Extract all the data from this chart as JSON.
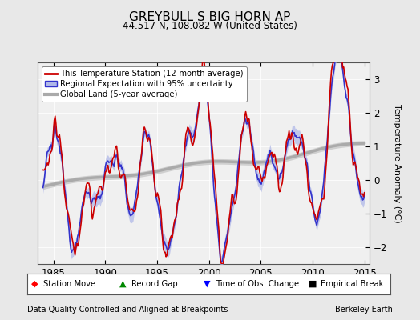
{
  "title": "GREYBULL S BIG HORN AP",
  "subtitle": "44.517 N, 108.082 W (United States)",
  "xlabel_left": "Data Quality Controlled and Aligned at Breakpoints",
  "xlabel_right": "Berkeley Earth",
  "ylabel": "Temperature Anomaly (°C)",
  "xlim": [
    1983.5,
    2015.5
  ],
  "ylim": [
    -2.5,
    3.5
  ],
  "yticks": [
    -2,
    -1,
    0,
    1,
    2,
    3
  ],
  "xticks": [
    1985,
    1990,
    1995,
    2000,
    2005,
    2010,
    2015
  ],
  "bg_color": "#e8e8e8",
  "plot_bg_color": "#f0f0f0",
  "legend_station": "This Temperature Station (12-month average)",
  "legend_regional": "Regional Expectation with 95% uncertainty",
  "legend_global": "Global Land (5-year average)",
  "station_color": "#cc0000",
  "regional_color": "#3333cc",
  "regional_fill_color": "#b0b8e8",
  "global_color": "#aaaaaa",
  "global_fill_color": "#cccccc",
  "grid_color": "#dddddd"
}
